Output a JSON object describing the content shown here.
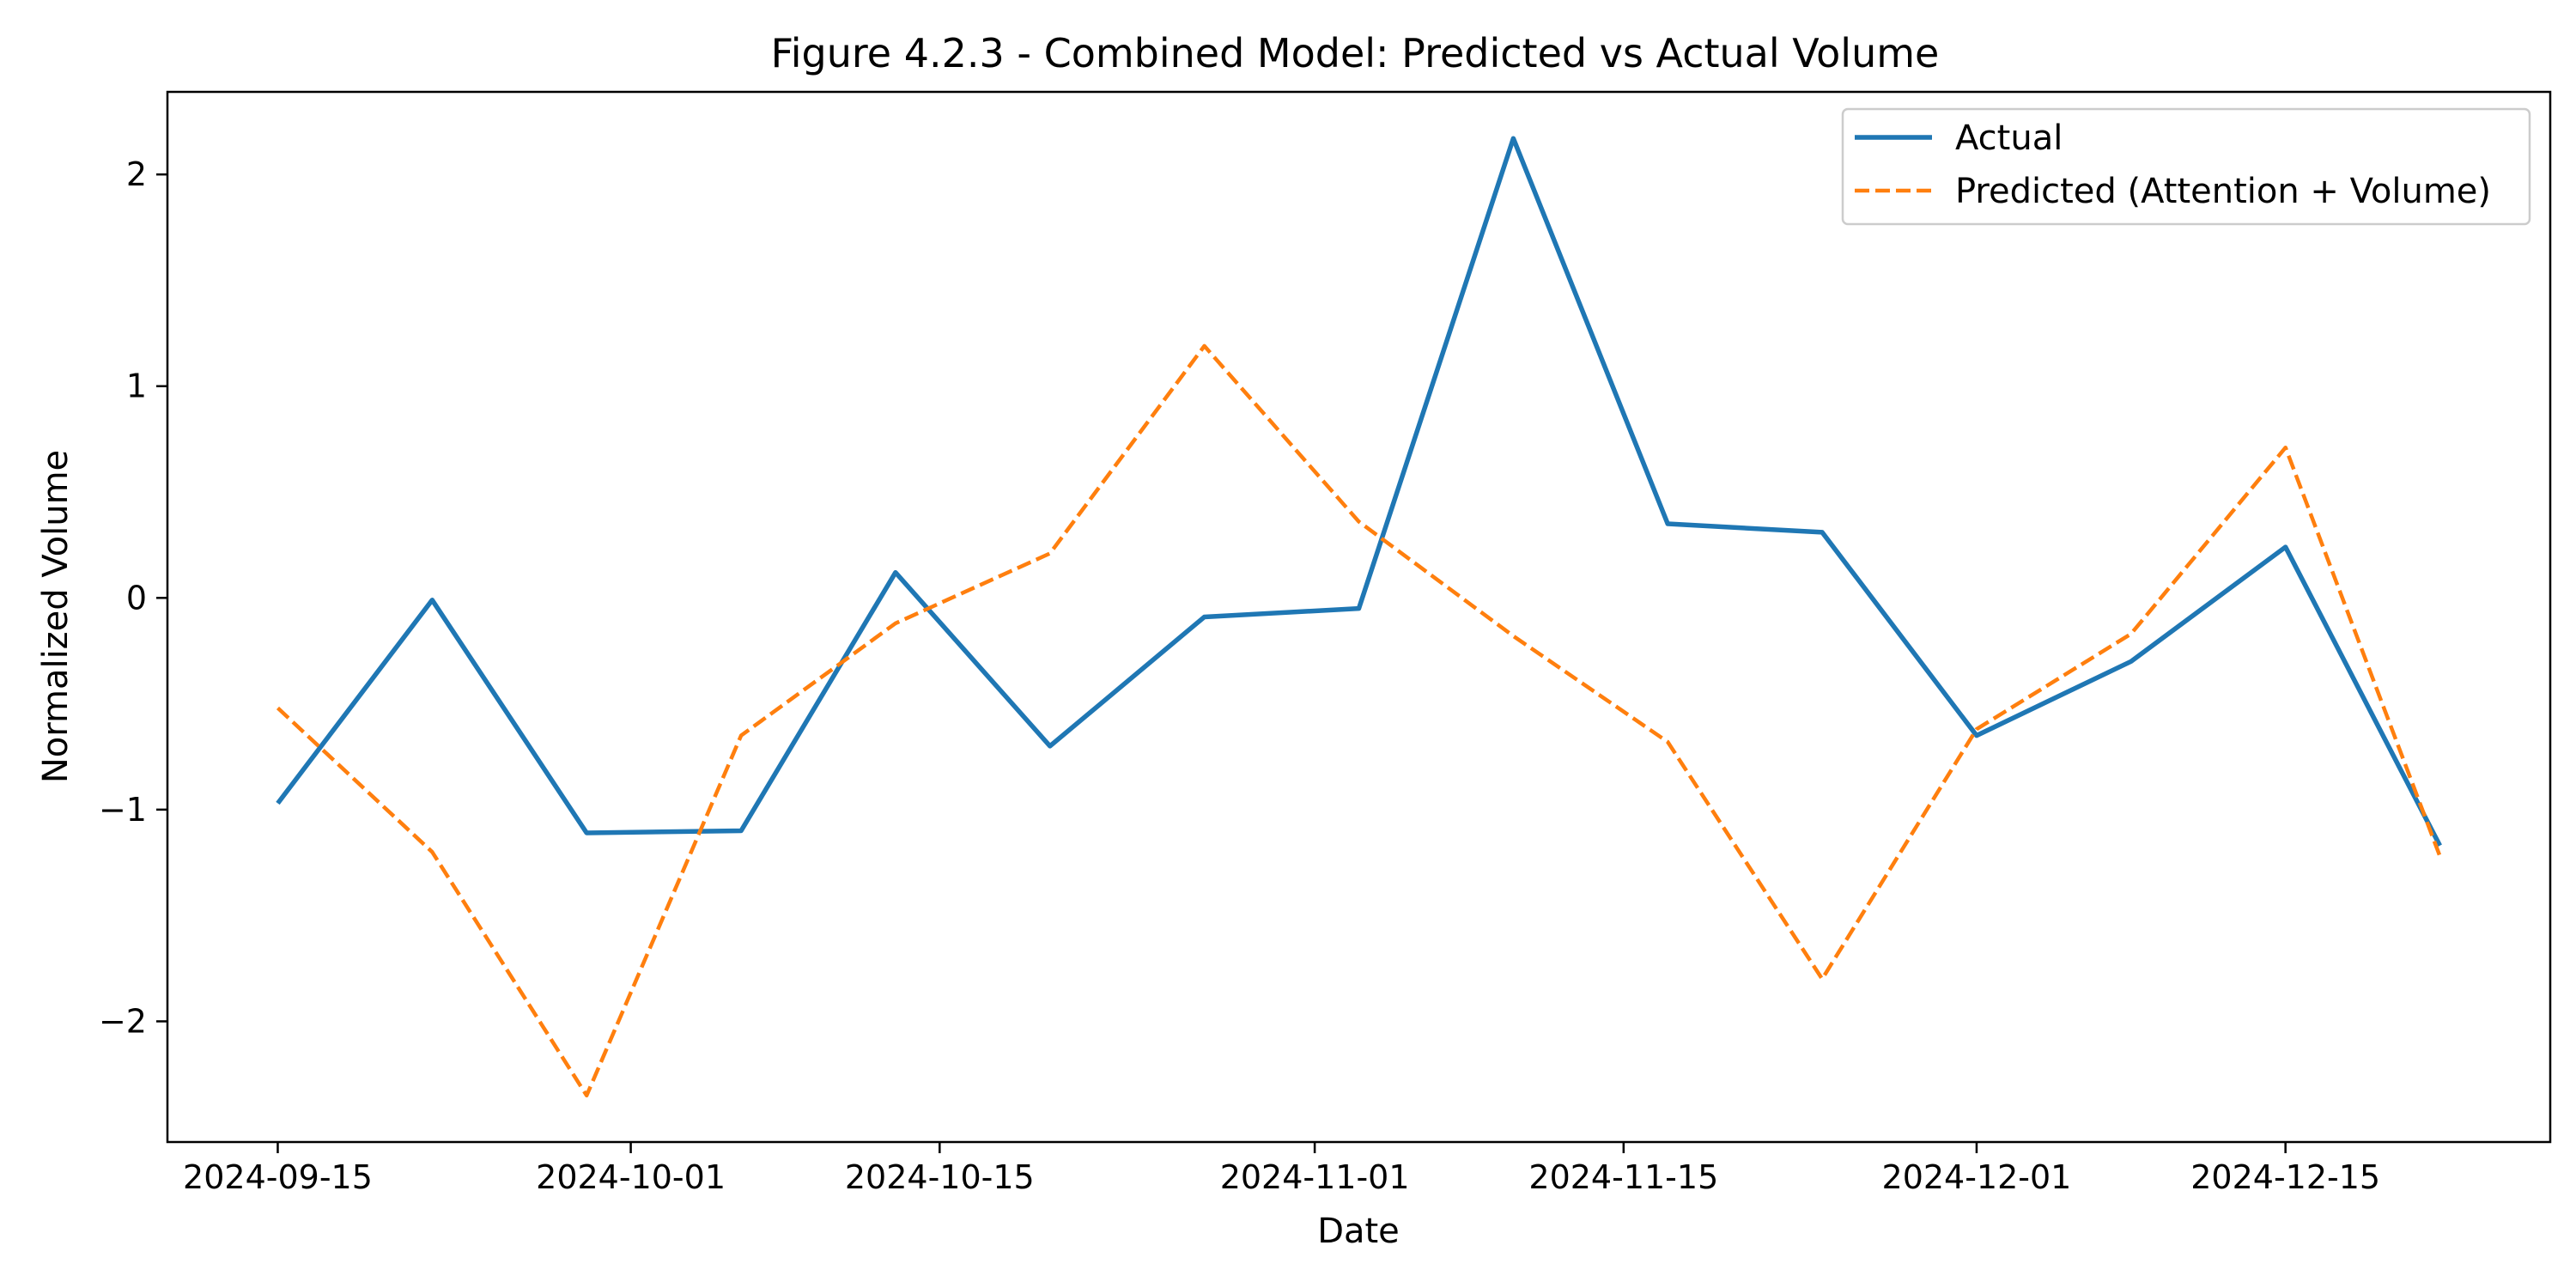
{
  "chart_data": {
    "type": "line",
    "title": "Figure 4.2.3 - Combined Model: Predicted vs Actual Volume",
    "xlabel": "Date",
    "ylabel": "Normalized Volume",
    "x": [
      "2024-09-15",
      "2024-09-22",
      "2024-09-29",
      "2024-10-06",
      "2024-10-13",
      "2024-10-20",
      "2024-10-27",
      "2024-11-03",
      "2024-11-10",
      "2024-11-17",
      "2024-11-24",
      "2024-12-01",
      "2024-12-08",
      "2024-12-15",
      "2024-12-22"
    ],
    "series": [
      {
        "name": "Actual",
        "color": "#1f77b4",
        "style": "solid",
        "values": [
          -0.97,
          -0.01,
          -1.11,
          -1.1,
          0.12,
          -0.7,
          -0.09,
          -0.05,
          2.17,
          0.35,
          0.31,
          -0.65,
          -0.3,
          0.24,
          -1.17
        ]
      },
      {
        "name": "Predicted (Attention + Volume)",
        "color": "#ff7f0e",
        "style": "dashed",
        "values": [
          -0.52,
          -1.2,
          -2.35,
          -0.65,
          -0.12,
          0.21,
          1.19,
          0.36,
          -0.18,
          -0.68,
          -1.8,
          -0.62,
          -0.17,
          0.71,
          -1.22
        ]
      }
    ],
    "x_ticks": [
      "2024-09-15",
      "2024-10-01",
      "2024-10-15",
      "2024-11-01",
      "2024-11-15",
      "2024-12-01",
      "2024-12-15"
    ],
    "y_ticks": [
      -2,
      -1,
      0,
      1,
      2
    ],
    "y_tick_labels": [
      "−2",
      "−1",
      "0",
      "1",
      "2"
    ],
    "xlim": [
      "2024-09-10",
      "2024-12-27"
    ],
    "ylim": [
      -2.57,
      2.39
    ],
    "grid": false,
    "legend_position": "top-right"
  }
}
